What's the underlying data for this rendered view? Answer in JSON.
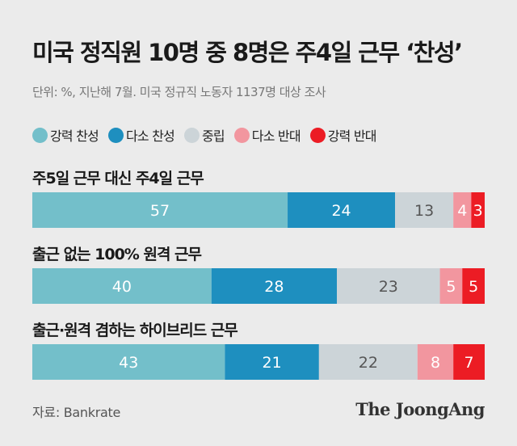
{
  "title": "미국 정직원 10명 중 8명은 주4일 근무 ‘찬성’",
  "subtitle": "단위: %, 지난해 7월. 미국 정규직 노동자 1137명 대상 조사",
  "source": "자료: Bankrate",
  "brand": "The JoongAng",
  "colors": {
    "strong_agree": "#73bfca",
    "agree": "#1e8fbf",
    "neutral": "#ccd4d8",
    "disagree": "#f2969f",
    "strong_disagree": "#ec1c24",
    "background": "#ebebeb"
  },
  "chart_data": {
    "type": "bar",
    "orientation": "horizontal-stacked",
    "unit": "%",
    "series": [
      {
        "name": "강력 찬성",
        "color": "#73bfca",
        "label_color": "#ffffff",
        "values": [
          57,
          40,
          43
        ]
      },
      {
        "name": "다소 찬성",
        "color": "#1e8fbf",
        "label_color": "#ffffff",
        "values": [
          24,
          28,
          21
        ]
      },
      {
        "name": "중립",
        "color": "#ccd4d8",
        "label_color": "#555555",
        "values": [
          13,
          23,
          22
        ]
      },
      {
        "name": "다소 반대",
        "color": "#f2969f",
        "label_color": "#ffffff",
        "values": [
          4,
          5,
          8
        ]
      },
      {
        "name": "강력 반대",
        "color": "#ec1c24",
        "label_color": "#ffffff",
        "values": [
          3,
          5,
          7
        ]
      }
    ],
    "categories": [
      "주5일 근무 대신 주4일 근무",
      "출근 없는 100% 원격 근무",
      "출근·원격 겸하는 하이브리드 근무"
    ],
    "legend_position": "top",
    "grid": false
  }
}
